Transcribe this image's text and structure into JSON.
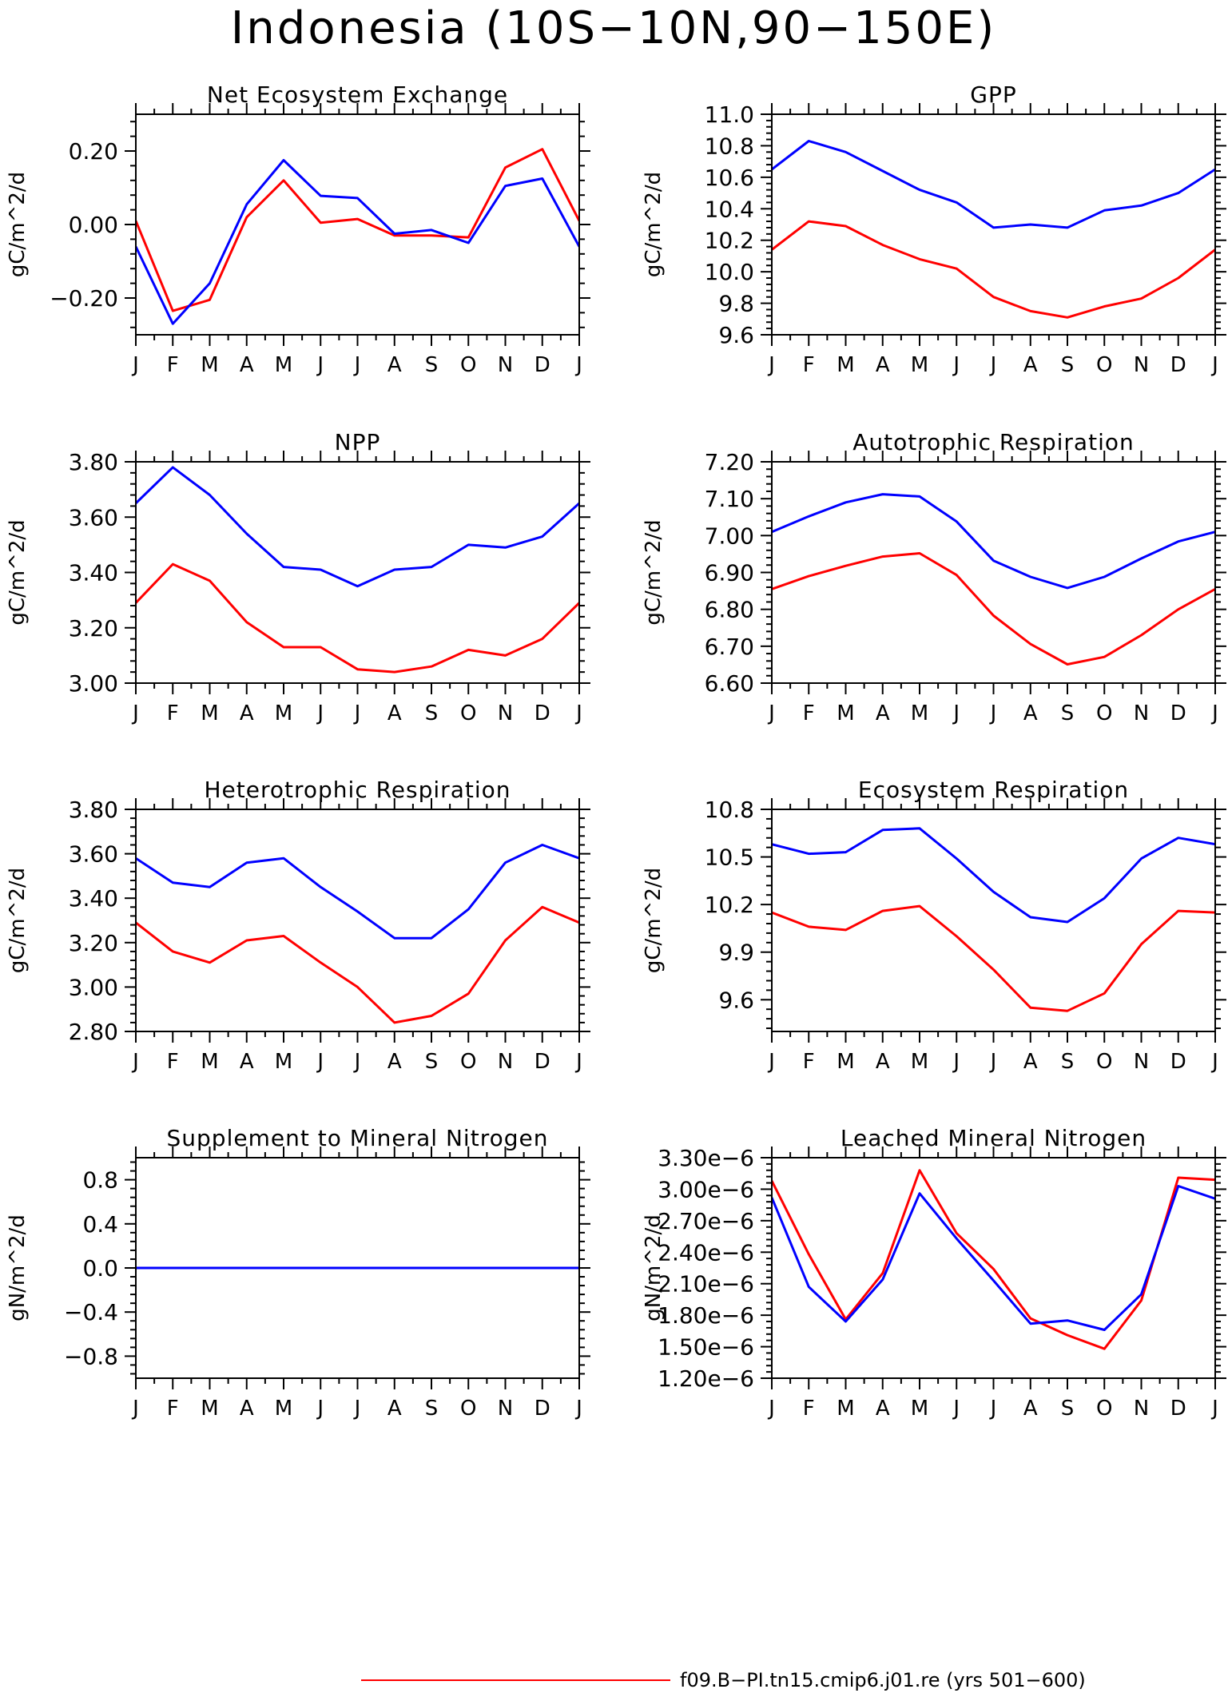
{
  "page_title": "Indonesia (10S−10N,90−150E)",
  "legend": {
    "label": "f09.B−PI.tn15.cmip6.j01.re (yrs 501−600)",
    "color": "#ff0000",
    "placement": "bottom-center"
  },
  "series_colors": {
    "red": "#ff0000",
    "blue": "#0000ff"
  },
  "chart_data": [
    {
      "type": "line",
      "title": "Net Ecosystem Exchange",
      "ylabel": "gC/m^2/d",
      "x": [
        "J",
        "F",
        "M",
        "A",
        "M",
        "J",
        "J",
        "A",
        "S",
        "O",
        "N",
        "D",
        "J"
      ],
      "ylim": [
        -0.3,
        0.3
      ],
      "yticks": [
        -0.2,
        0.0,
        0.2
      ],
      "ytick_labels": [
        "−0.20",
        "0.00",
        "0.20"
      ],
      "series": [
        {
          "color": "#ff0000",
          "values": [
            0.01,
            -0.235,
            -0.205,
            0.02,
            0.12,
            0.005,
            0.015,
            -0.03,
            -0.03,
            -0.035,
            0.155,
            0.205,
            0.01
          ]
        },
        {
          "color": "#0000ff",
          "values": [
            -0.06,
            -0.27,
            -0.16,
            0.055,
            0.175,
            0.078,
            0.072,
            -0.025,
            -0.015,
            -0.05,
            0.105,
            0.125,
            -0.06
          ]
        }
      ]
    },
    {
      "type": "line",
      "title": "GPP",
      "ylabel": "gC/m^2/d",
      "x": [
        "J",
        "F",
        "M",
        "A",
        "M",
        "J",
        "J",
        "A",
        "S",
        "O",
        "N",
        "D",
        "J"
      ],
      "ylim": [
        9.6,
        11.0
      ],
      "yticks": [
        9.6,
        9.8,
        10.0,
        10.2,
        10.4,
        10.6,
        10.8,
        11.0
      ],
      "ytick_labels": [
        "9.6",
        "9.8",
        "10.0",
        "10.2",
        "10.4",
        "10.6",
        "10.8",
        "11.0"
      ],
      "series": [
        {
          "color": "#ff0000",
          "values": [
            10.14,
            10.32,
            10.29,
            10.17,
            10.08,
            10.02,
            9.84,
            9.75,
            9.71,
            9.78,
            9.83,
            9.96,
            10.14
          ]
        },
        {
          "color": "#0000ff",
          "values": [
            10.65,
            10.83,
            10.76,
            10.64,
            10.52,
            10.44,
            10.28,
            10.3,
            10.28,
            10.39,
            10.42,
            10.5,
            10.65
          ]
        }
      ]
    },
    {
      "type": "line",
      "title": "NPP",
      "ylabel": "gC/m^2/d",
      "x": [
        "J",
        "F",
        "M",
        "A",
        "M",
        "J",
        "J",
        "A",
        "S",
        "O",
        "N",
        "D",
        "J"
      ],
      "ylim": [
        3.0,
        3.8
      ],
      "yticks": [
        3.0,
        3.2,
        3.4,
        3.6,
        3.8
      ],
      "ytick_labels": [
        "3.00",
        "3.20",
        "3.40",
        "3.60",
        "3.80"
      ],
      "series": [
        {
          "color": "#ff0000",
          "values": [
            3.29,
            3.43,
            3.37,
            3.22,
            3.13,
            3.13,
            3.05,
            3.04,
            3.06,
            3.12,
            3.1,
            3.16,
            3.29
          ]
        },
        {
          "color": "#0000ff",
          "values": [
            3.65,
            3.78,
            3.68,
            3.54,
            3.42,
            3.41,
            3.35,
            3.41,
            3.42,
            3.5,
            3.49,
            3.53,
            3.65
          ]
        }
      ]
    },
    {
      "type": "line",
      "title": "Autotrophic Respiration",
      "ylabel": "gC/m^2/d",
      "x": [
        "J",
        "F",
        "M",
        "A",
        "M",
        "J",
        "J",
        "A",
        "S",
        "O",
        "N",
        "D",
        "J"
      ],
      "ylim": [
        6.6,
        7.2
      ],
      "yticks": [
        6.6,
        6.7,
        6.8,
        6.9,
        7.0,
        7.1,
        7.2
      ],
      "ytick_labels": [
        "6.60",
        "6.70",
        "6.80",
        "6.90",
        "7.00",
        "7.10",
        "7.20"
      ],
      "series": [
        {
          "color": "#ff0000",
          "values": [
            6.855,
            6.89,
            6.918,
            6.943,
            6.952,
            6.893,
            6.783,
            6.706,
            6.651,
            6.671,
            6.73,
            6.8,
            6.855
          ]
        },
        {
          "color": "#0000ff",
          "values": [
            7.01,
            7.052,
            7.09,
            7.112,
            7.106,
            7.038,
            6.932,
            6.888,
            6.858,
            6.888,
            6.938,
            6.984,
            7.01
          ]
        }
      ]
    },
    {
      "type": "line",
      "title": "Heterotrophic Respiration",
      "ylabel": "gC/m^2/d",
      "x": [
        "J",
        "F",
        "M",
        "A",
        "M",
        "J",
        "J",
        "A",
        "S",
        "O",
        "N",
        "D",
        "J"
      ],
      "ylim": [
        2.8,
        3.8
      ],
      "yticks": [
        2.8,
        3.0,
        3.2,
        3.4,
        3.6,
        3.8
      ],
      "ytick_labels": [
        "2.80",
        "3.00",
        "3.20",
        "3.40",
        "3.60",
        "3.80"
      ],
      "series": [
        {
          "color": "#ff0000",
          "values": [
            3.29,
            3.16,
            3.11,
            3.21,
            3.23,
            3.11,
            3.0,
            2.84,
            2.87,
            2.97,
            3.21,
            3.36,
            3.29
          ]
        },
        {
          "color": "#0000ff",
          "values": [
            3.58,
            3.47,
            3.45,
            3.56,
            3.58,
            3.45,
            3.34,
            3.22,
            3.22,
            3.35,
            3.56,
            3.64,
            3.58
          ]
        }
      ]
    },
    {
      "type": "line",
      "title": "Ecosystem Respiration",
      "ylabel": "gC/m^2/d",
      "x": [
        "J",
        "F",
        "M",
        "A",
        "M",
        "J",
        "J",
        "A",
        "S",
        "O",
        "N",
        "D",
        "J"
      ],
      "ylim": [
        9.4,
        10.8
      ],
      "yticks": [
        9.6,
        9.9,
        10.2,
        10.5,
        10.8
      ],
      "ytick_labels": [
        "9.6",
        "9.9",
        "10.2",
        "10.5",
        "10.8"
      ],
      "series": [
        {
          "color": "#ff0000",
          "values": [
            10.15,
            10.06,
            10.04,
            10.16,
            10.19,
            10.0,
            9.79,
            9.55,
            9.53,
            9.64,
            9.95,
            10.16,
            10.15
          ]
        },
        {
          "color": "#0000ff",
          "values": [
            10.58,
            10.52,
            10.53,
            10.67,
            10.68,
            10.49,
            10.28,
            10.12,
            10.09,
            10.24,
            10.49,
            10.62,
            10.58
          ]
        }
      ]
    },
    {
      "type": "line",
      "title": "Supplement to Mineral Nitrogen",
      "ylabel": "gN/m^2/d",
      "x": [
        "J",
        "F",
        "M",
        "A",
        "M",
        "J",
        "J",
        "A",
        "S",
        "O",
        "N",
        "D",
        "J"
      ],
      "ylim": [
        -1.0,
        1.0
      ],
      "yticks": [
        -0.8,
        -0.4,
        0.0,
        0.4,
        0.8
      ],
      "ytick_labels": [
        "−0.8",
        "−0.4",
        "0.0",
        "0.4",
        "0.8"
      ],
      "series": [
        {
          "color": "#ff0000",
          "values": [
            0,
            0,
            0,
            0,
            0,
            0,
            0,
            0,
            0,
            0,
            0,
            0,
            0
          ]
        },
        {
          "color": "#0000ff",
          "values": [
            0,
            0,
            0,
            0,
            0,
            0,
            0,
            0,
            0,
            0,
            0,
            0,
            0
          ]
        }
      ]
    },
    {
      "type": "line",
      "title": "Leached Mineral Nitrogen",
      "ylabel": "gN/m^2/d",
      "x": [
        "J",
        "F",
        "M",
        "A",
        "M",
        "J",
        "J",
        "A",
        "S",
        "O",
        "N",
        "D",
        "J"
      ],
      "ylim": [
        1.2e-06,
        3.3e-06
      ],
      "yticks": [
        1.2e-06,
        1.5e-06,
        1.8e-06,
        2.1e-06,
        2.4e-06,
        2.7e-06,
        3e-06,
        3.3e-06
      ],
      "ytick_labels": [
        "1.20e−6",
        "1.50e−6",
        "1.80e−6",
        "2.10e−6",
        "2.40e−6",
        "2.70e−6",
        "3.00e−6",
        "3.30e−6"
      ],
      "series": [
        {
          "color": "#ff0000",
          "values": [
            3.08e-06,
            2.38e-06,
            1.76e-06,
            2.2e-06,
            3.18e-06,
            2.58e-06,
            2.24e-06,
            1.77e-06,
            1.61e-06,
            1.48e-06,
            1.94e-06,
            3.11e-06,
            3.09e-06
          ]
        },
        {
          "color": "#0000ff",
          "values": [
            2.92e-06,
            2.07e-06,
            1.74e-06,
            2.14e-06,
            2.96e-06,
            2.53e-06,
            2.13e-06,
            1.72e-06,
            1.75e-06,
            1.66e-06,
            2e-06,
            3.03e-06,
            2.91e-06
          ]
        }
      ]
    }
  ]
}
